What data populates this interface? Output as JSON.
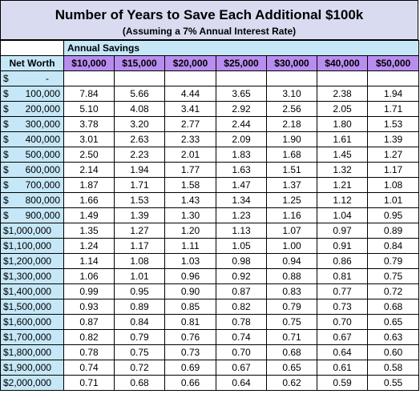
{
  "title": "Number of Years to Save Each Additional $100k",
  "subtitle": "(Assuming a 7% Annual Interest Rate)",
  "annual_label": "Annual Savings",
  "networth_header": "Net Worth",
  "savings_headers": [
    "$10,000",
    "$15,000",
    "$20,000",
    "$25,000",
    "$30,000",
    "$40,000",
    "$50,000"
  ],
  "rows": [
    {
      "sym": "$",
      "amt": "-",
      "vals": [
        "",
        "",
        "",
        "",
        "",
        "",
        ""
      ]
    },
    {
      "sym": "$",
      "amt": "100,000",
      "vals": [
        "7.84",
        "5.66",
        "4.44",
        "3.65",
        "3.10",
        "2.38",
        "1.94"
      ]
    },
    {
      "sym": "$",
      "amt": "200,000",
      "vals": [
        "5.10",
        "4.08",
        "3.41",
        "2.92",
        "2.56",
        "2.05",
        "1.71"
      ]
    },
    {
      "sym": "$",
      "amt": "300,000",
      "vals": [
        "3.78",
        "3.20",
        "2.77",
        "2.44",
        "2.18",
        "1.80",
        "1.53"
      ]
    },
    {
      "sym": "$",
      "amt": "400,000",
      "vals": [
        "3.01",
        "2.63",
        "2.33",
        "2.09",
        "1.90",
        "1.61",
        "1.39"
      ]
    },
    {
      "sym": "$",
      "amt": "500,000",
      "vals": [
        "2.50",
        "2.23",
        "2.01",
        "1.83",
        "1.68",
        "1.45",
        "1.27"
      ]
    },
    {
      "sym": "$",
      "amt": "600,000",
      "vals": [
        "2.14",
        "1.94",
        "1.77",
        "1.63",
        "1.51",
        "1.32",
        "1.17"
      ]
    },
    {
      "sym": "$",
      "amt": "700,000",
      "vals": [
        "1.87",
        "1.71",
        "1.58",
        "1.47",
        "1.37",
        "1.21",
        "1.08"
      ]
    },
    {
      "sym": "$",
      "amt": "800,000",
      "vals": [
        "1.66",
        "1.53",
        "1.43",
        "1.34",
        "1.25",
        "1.12",
        "1.01"
      ]
    },
    {
      "sym": "$",
      "amt": "900,000",
      "vals": [
        "1.49",
        "1.39",
        "1.30",
        "1.23",
        "1.16",
        "1.04",
        "0.95"
      ]
    },
    {
      "sym": "$1,000,000",
      "amt": "",
      "vals": [
        "1.35",
        "1.27",
        "1.20",
        "1.13",
        "1.07",
        "0.97",
        "0.89"
      ]
    },
    {
      "sym": "$1,100,000",
      "amt": "",
      "vals": [
        "1.24",
        "1.17",
        "1.11",
        "1.05",
        "1.00",
        "0.91",
        "0.84"
      ]
    },
    {
      "sym": "$1,200,000",
      "amt": "",
      "vals": [
        "1.14",
        "1.08",
        "1.03",
        "0.98",
        "0.94",
        "0.86",
        "0.79"
      ]
    },
    {
      "sym": "$1,300,000",
      "amt": "",
      "vals": [
        "1.06",
        "1.01",
        "0.96",
        "0.92",
        "0.88",
        "0.81",
        "0.75"
      ]
    },
    {
      "sym": "$1,400,000",
      "amt": "",
      "vals": [
        "0.99",
        "0.95",
        "0.90",
        "0.87",
        "0.83",
        "0.77",
        "0.72"
      ]
    },
    {
      "sym": "$1,500,000",
      "amt": "",
      "vals": [
        "0.93",
        "0.89",
        "0.85",
        "0.82",
        "0.79",
        "0.73",
        "0.68"
      ]
    },
    {
      "sym": "$1,600,000",
      "amt": "",
      "vals": [
        "0.87",
        "0.84",
        "0.81",
        "0.78",
        "0.75",
        "0.70",
        "0.65"
      ]
    },
    {
      "sym": "$1,700,000",
      "amt": "",
      "vals": [
        "0.82",
        "0.79",
        "0.76",
        "0.74",
        "0.71",
        "0.67",
        "0.63"
      ]
    },
    {
      "sym": "$1,800,000",
      "amt": "",
      "vals": [
        "0.78",
        "0.75",
        "0.73",
        "0.70",
        "0.68",
        "0.64",
        "0.60"
      ]
    },
    {
      "sym": "$1,900,000",
      "amt": "",
      "vals": [
        "0.74",
        "0.72",
        "0.69",
        "0.67",
        "0.65",
        "0.61",
        "0.58"
      ]
    },
    {
      "sym": "$2,000,000",
      "amt": "",
      "vals": [
        "0.71",
        "0.68",
        "0.66",
        "0.64",
        "0.62",
        "0.59",
        "0.55"
      ]
    }
  ],
  "colors": {
    "title_bg": "#d9dcf0",
    "networth_bg": "#c5e7f7",
    "savings_header_bg": "#b98df0",
    "grid_border": "#000000"
  }
}
